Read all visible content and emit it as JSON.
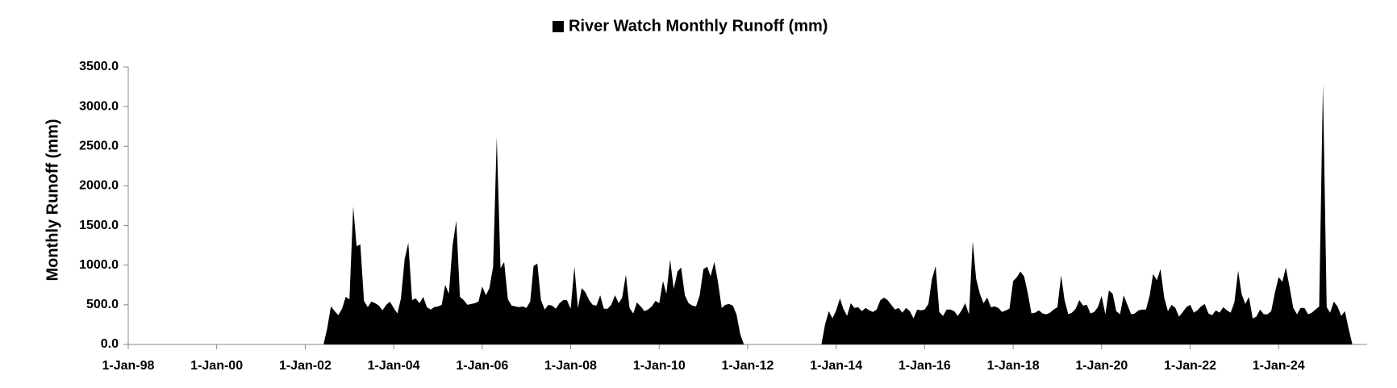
{
  "chart_data": {
    "type": "area",
    "y_label": "Monthly Runoff (mm)",
    "legend": "top",
    "grid": false,
    "xlim": [
      "1998-01-01",
      "2026-01-01"
    ],
    "xticks": [
      {
        "value": "1998-01-01",
        "label": "1-Jan-98"
      },
      {
        "value": "2000-01-01",
        "label": "1-Jan-00"
      },
      {
        "value": "2002-01-01",
        "label": "1-Jan-02"
      },
      {
        "value": "2004-01-01",
        "label": "1-Jan-04"
      },
      {
        "value": "2006-01-01",
        "label": "1-Jan-06"
      },
      {
        "value": "2008-01-01",
        "label": "1-Jan-08"
      },
      {
        "value": "2010-01-01",
        "label": "1-Jan-10"
      },
      {
        "value": "2012-01-01",
        "label": "1-Jan-12"
      },
      {
        "value": "2014-01-01",
        "label": "1-Jan-14"
      },
      {
        "value": "2016-01-01",
        "label": "1-Jan-16"
      },
      {
        "value": "2018-01-01",
        "label": "1-Jan-18"
      },
      {
        "value": "2020-01-01",
        "label": "1-Jan-20"
      },
      {
        "value": "2022-01-01",
        "label": "1-Jan-22"
      },
      {
        "value": "2024-01-01",
        "label": "1-Jan-24"
      }
    ],
    "ylim": [
      0,
      3500
    ],
    "yticks": [
      {
        "value": 0,
        "label": "0.0"
      },
      {
        "value": 500,
        "label": "500.0"
      },
      {
        "value": 1000,
        "label": "1000.0"
      },
      {
        "value": 1500,
        "label": "1500.0"
      },
      {
        "value": 2000,
        "label": "2000.0"
      },
      {
        "value": 2500,
        "label": "2500.0"
      },
      {
        "value": 3000,
        "label": "3000.0"
      },
      {
        "value": 3500,
        "label": "3500.0"
      }
    ],
    "x": [
      "2002-06-01",
      "2002-07-01",
      "2002-08-01",
      "2002-09-01",
      "2002-10-01",
      "2002-11-01",
      "2002-12-01",
      "2003-01-01",
      "2003-02-01",
      "2003-03-01",
      "2003-04-01",
      "2003-05-01",
      "2003-06-01",
      "2003-07-01",
      "2003-08-01",
      "2003-09-01",
      "2003-10-01",
      "2003-11-01",
      "2003-12-01",
      "2004-01-01",
      "2004-02-01",
      "2004-03-01",
      "2004-04-01",
      "2004-05-01",
      "2004-06-01",
      "2004-07-01",
      "2004-08-01",
      "2004-09-01",
      "2004-10-01",
      "2004-11-01",
      "2004-12-01",
      "2005-01-01",
      "2005-02-01",
      "2005-03-01",
      "2005-04-01",
      "2005-05-01",
      "2005-06-01",
      "2005-07-01",
      "2005-08-01",
      "2005-09-01",
      "2005-10-01",
      "2005-11-01",
      "2005-12-01",
      "2006-01-01",
      "2006-02-01",
      "2006-03-01",
      "2006-04-01",
      "2006-05-01",
      "2006-06-01",
      "2006-07-01",
      "2006-08-01",
      "2006-09-01",
      "2006-10-01",
      "2006-11-01",
      "2006-12-01",
      "2007-01-01",
      "2007-02-01",
      "2007-03-01",
      "2007-04-01",
      "2007-05-01",
      "2007-06-01",
      "2007-07-01",
      "2007-08-01",
      "2007-09-01",
      "2007-10-01",
      "2007-11-01",
      "2007-12-01",
      "2008-01-01",
      "2008-02-01",
      "2008-03-01",
      "2008-04-01",
      "2008-05-01",
      "2008-06-01",
      "2008-07-01",
      "2008-08-01",
      "2008-09-01",
      "2008-10-01",
      "2008-11-01",
      "2008-12-01",
      "2009-01-01",
      "2009-02-01",
      "2009-03-01",
      "2009-04-01",
      "2009-05-01",
      "2009-06-01",
      "2009-07-01",
      "2009-08-01",
      "2009-09-01",
      "2009-10-01",
      "2009-11-01",
      "2009-12-01",
      "2010-01-01",
      "2010-02-01",
      "2010-03-01",
      "2010-04-01",
      "2010-05-01",
      "2010-06-01",
      "2010-07-01",
      "2010-08-01",
      "2010-09-01",
      "2010-10-01",
      "2010-11-01",
      "2010-12-01",
      "2011-01-01",
      "2011-02-01",
      "2011-03-01",
      "2011-04-01",
      "2011-05-01",
      "2011-06-01",
      "2011-07-01",
      "2011-08-01",
      "2011-09-01",
      "2011-10-01",
      "2011-11-01",
      "2011-12-01",
      "2013-09-01",
      "2013-10-01",
      "2013-11-01",
      "2013-12-01",
      "2014-01-01",
      "2014-02-01",
      "2014-03-01",
      "2014-04-01",
      "2014-05-01",
      "2014-06-01",
      "2014-07-01",
      "2014-08-01",
      "2014-09-01",
      "2014-10-01",
      "2014-11-01",
      "2014-12-01",
      "2015-01-01",
      "2015-02-01",
      "2015-03-01",
      "2015-04-01",
      "2015-05-01",
      "2015-06-01",
      "2015-07-01",
      "2015-08-01",
      "2015-09-01",
      "2015-10-01",
      "2015-11-01",
      "2015-12-01",
      "2016-01-01",
      "2016-02-01",
      "2016-03-01",
      "2016-04-01",
      "2016-05-01",
      "2016-06-01",
      "2016-07-01",
      "2016-08-01",
      "2016-09-01",
      "2016-10-01",
      "2016-11-01",
      "2016-12-01",
      "2017-01-01",
      "2017-02-01",
      "2017-03-01",
      "2017-04-01",
      "2017-05-01",
      "2017-06-01",
      "2017-07-01",
      "2017-08-01",
      "2017-09-01",
      "2017-10-01",
      "2017-11-01",
      "2017-12-01",
      "2018-01-01",
      "2018-02-01",
      "2018-03-01",
      "2018-04-01",
      "2018-05-01",
      "2018-06-01",
      "2018-07-01",
      "2018-08-01",
      "2018-09-01",
      "2018-10-01",
      "2018-11-01",
      "2018-12-01",
      "2019-01-01",
      "2019-02-01",
      "2019-03-01",
      "2019-04-01",
      "2019-05-01",
      "2019-06-01",
      "2019-07-01",
      "2019-08-01",
      "2019-09-01",
      "2019-10-01",
      "2019-11-01",
      "2019-12-01",
      "2020-01-01",
      "2020-02-01",
      "2020-03-01",
      "2020-04-01",
      "2020-05-01",
      "2020-06-01",
      "2020-07-01",
      "2020-08-01",
      "2020-09-01",
      "2020-10-01",
      "2020-11-01",
      "2020-12-01",
      "2021-01-01",
      "2021-02-01",
      "2021-03-01",
      "2021-04-01",
      "2021-05-01",
      "2021-06-01",
      "2021-07-01",
      "2021-08-01",
      "2021-09-01",
      "2021-10-01",
      "2021-11-01",
      "2021-12-01",
      "2022-01-01",
      "2022-02-01",
      "2022-03-01",
      "2022-04-01",
      "2022-05-01",
      "2022-06-01",
      "2022-07-01",
      "2022-08-01",
      "2022-09-01",
      "2022-10-01",
      "2022-11-01",
      "2022-12-01",
      "2023-01-01",
      "2023-02-01",
      "2023-03-01",
      "2023-04-01",
      "2023-05-01",
      "2023-06-01",
      "2023-07-01",
      "2023-08-01",
      "2023-09-01",
      "2023-10-01",
      "2023-11-01",
      "2023-12-01",
      "2024-01-01",
      "2024-02-01",
      "2024-03-01",
      "2024-04-01",
      "2024-05-01",
      "2024-06-01",
      "2024-07-01",
      "2024-08-01",
      "2024-09-01",
      "2024-10-01",
      "2024-11-01",
      "2024-12-01",
      "2025-01-01",
      "2025-02-01",
      "2025-03-01",
      "2025-04-01",
      "2025-05-01",
      "2025-06-01",
      "2025-07-01",
      "2025-08-01",
      "2025-09-01"
    ],
    "series": [
      {
        "name": "River Watch Monthly Runoff (mm)",
        "color": "#000000",
        "values": [
          0,
          200,
          480,
          420,
          370,
          450,
          600,
          570,
          1740,
          1240,
          1260,
          550,
          470,
          540,
          520,
          490,
          430,
          500,
          540,
          460,
          390,
          580,
          1080,
          1280,
          560,
          580,
          520,
          600,
          470,
          440,
          470,
          480,
          500,
          750,
          640,
          1250,
          1560,
          600,
          560,
          500,
          510,
          520,
          540,
          730,
          620,
          710,
          980,
          2620,
          960,
          1040,
          570,
          490,
          480,
          470,
          480,
          460,
          540,
          990,
          1020,
          560,
          440,
          500,
          490,
          450,
          520,
          560,
          560,
          450,
          980,
          460,
          710,
          660,
          560,
          500,
          490,
          620,
          450,
          450,
          500,
          620,
          520,
          590,
          880,
          460,
          390,
          530,
          480,
          420,
          440,
          480,
          550,
          520,
          800,
          640,
          1070,
          700,
          920,
          970,
          620,
          520,
          490,
          480,
          620,
          950,
          980,
          860,
          1040,
          790,
          460,
          500,
          510,
          490,
          380,
          130,
          0,
          0,
          250,
          420,
          330,
          430,
          580,
          450,
          360,
          520,
          460,
          470,
          420,
          460,
          430,
          410,
          440,
          560,
          590,
          560,
          500,
          440,
          460,
          400,
          460,
          420,
          330,
          440,
          430,
          440,
          510,
          820,
          990,
          410,
          360,
          440,
          440,
          420,
          360,
          430,
          520,
          380,
          1300,
          830,
          640,
          520,
          590,
          470,
          480,
          460,
          410,
          430,
          450,
          800,
          850,
          920,
          860,
          650,
          390,
          400,
          430,
          390,
          380,
          400,
          440,
          470,
          870,
          560,
          380,
          400,
          450,
          560,
          490,
          500,
          390,
          410,
          470,
          610,
          380,
          680,
          640,
          420,
          380,
          620,
          500,
          380,
          390,
          430,
          440,
          440,
          620,
          890,
          810,
          950,
          590,
          420,
          500,
          460,
          350,
          410,
          470,
          500,
          400,
          430,
          480,
          510,
          390,
          370,
          430,
          400,
          470,
          430,
          400,
          530,
          930,
          640,
          510,
          600,
          330,
          350,
          440,
          380,
          380,
          420,
          650,
          850,
          790,
          970,
          720,
          460,
          380,
          460,
          460,
          380,
          400,
          440,
          480,
          3280,
          470,
          400,
          540,
          480,
          360,
          420,
          200,
          0
        ]
      }
    ]
  }
}
